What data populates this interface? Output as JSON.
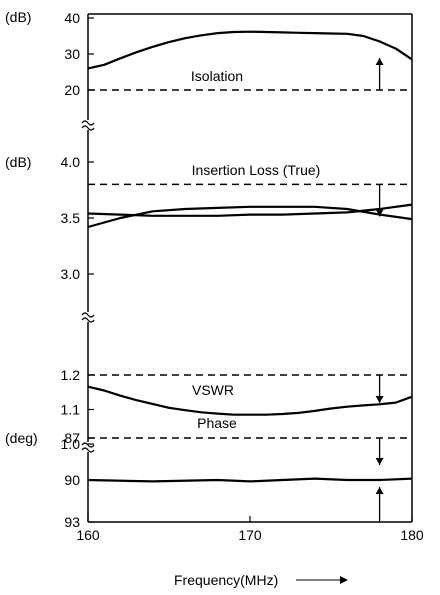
{
  "chart_data": {
    "type": "line",
    "xlabel": "Frequency(MHz)",
    "xlim": [
      160,
      180
    ],
    "x_ticks": [
      "160",
      "170",
      "180"
    ],
    "x_axis_has_arrow": true,
    "grid": false,
    "legend": "none",
    "panels": [
      {
        "id": "isolation",
        "label": "Isolation",
        "unit": "(dB)",
        "ylim": [
          20,
          40
        ],
        "y_ticks": [
          "40",
          "30",
          "20"
        ],
        "spec_line": {
          "y": 20,
          "style": "dashed"
        },
        "spec_arrow": {
          "x": 178,
          "direction": "up"
        },
        "series": [
          {
            "x": [
              160,
              161,
              162,
              163,
              164,
              165,
              166,
              167,
              168,
              169,
              170,
              171,
              172,
              173,
              174,
              175,
              176,
              177,
              178,
              179,
              180
            ],
            "y": [
              26,
              27,
              28.8,
              30.5,
              32,
              33.3,
              34.4,
              35.2,
              35.8,
              36.1,
              36.2,
              36.1,
              36,
              35.9,
              35.8,
              35.7,
              35.6,
              35,
              33.5,
              31.5,
              28.5
            ]
          }
        ]
      },
      {
        "id": "insertion-loss",
        "label": "Insertion Loss (True)",
        "unit": "(dB)",
        "ylim": [
          3.0,
          4.0
        ],
        "y_ticks": [
          "4.0",
          "3.5",
          "3.0"
        ],
        "spec_line": {
          "y": 3.8,
          "style": "dashed"
        },
        "spec_arrow": {
          "x": 178,
          "direction": "down"
        },
        "series": [
          {
            "x": [
              160,
              162,
              164,
              166,
              168,
              170,
              172,
              174,
              176,
              178,
              180
            ],
            "y": [
              3.42,
              3.5,
              3.56,
              3.58,
              3.59,
              3.6,
              3.6,
              3.6,
              3.58,
              3.53,
              3.49
            ]
          },
          {
            "x": [
              160,
              162,
              164,
              166,
              168,
              170,
              172,
              174,
              176,
              178,
              180
            ],
            "y": [
              3.54,
              3.53,
              3.52,
              3.52,
              3.52,
              3.53,
              3.53,
              3.54,
              3.55,
              3.58,
              3.62
            ]
          }
        ]
      },
      {
        "id": "vswr",
        "label": "VSWR",
        "unit": "",
        "ylim": [
          1.0,
          1.2
        ],
        "y_ticks": [
          "1.2",
          "1.1",
          "1.0"
        ],
        "spec_line": {
          "y": 1.2,
          "style": "dashed"
        },
        "spec_arrow": {
          "x": 178,
          "direction": "down"
        },
        "series": [
          {
            "x": [
              160,
              161,
              162,
              163,
              164,
              165,
              166,
              167,
              168,
              169,
              170,
              171,
              172,
              173,
              174,
              175,
              176,
              177,
              178,
              179,
              180
            ],
            "y": [
              1.166,
              1.155,
              1.14,
              1.127,
              1.116,
              1.105,
              1.098,
              1.092,
              1.088,
              1.085,
              1.085,
              1.085,
              1.087,
              1.09,
              1.096,
              1.103,
              1.108,
              1.112,
              1.115,
              1.12,
              1.137
            ]
          }
        ]
      },
      {
        "id": "phase",
        "label": "Phase",
        "unit": "(deg)",
        "ylim": [
          87,
          93
        ],
        "y_ticks": [
          "87",
          "90",
          "93"
        ],
        "inverted": true,
        "spec_lines": [
          {
            "y": 87,
            "style": "dashed"
          }
        ],
        "spec_arrows": [
          {
            "x": 178,
            "direction": "down"
          },
          {
            "x": 178,
            "direction": "up"
          }
        ],
        "series": [
          {
            "x": [
              160,
              164,
              168,
              170,
              172,
              174,
              176,
              178,
              180
            ],
            "y": [
              90,
              90.1,
              90,
              90.1,
              90,
              89.9,
              90,
              90,
              89.9
            ]
          }
        ]
      }
    ]
  }
}
